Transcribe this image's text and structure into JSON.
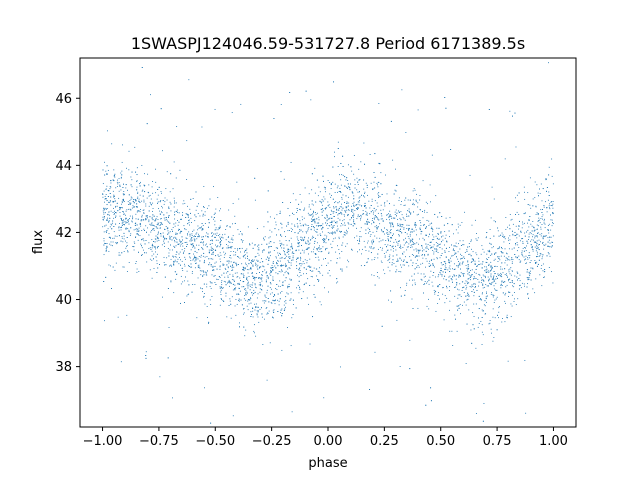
{
  "chart_data": {
    "type": "scatter",
    "title": "1SWASPJ124046.59-531727.8 Period 6171389.5s",
    "xlabel": "phase",
    "ylabel": "flux",
    "xlim": [
      -1.1,
      1.1
    ],
    "ylim": [
      36.2,
      47.2
    ],
    "xticks": [
      {
        "value": -1.0,
        "label": "−1.00"
      },
      {
        "value": -0.75,
        "label": "−0.75"
      },
      {
        "value": -0.5,
        "label": "−0.50"
      },
      {
        "value": -0.25,
        "label": "−0.25"
      },
      {
        "value": 0.0,
        "label": "0.00"
      },
      {
        "value": 0.25,
        "label": "0.25"
      },
      {
        "value": 0.5,
        "label": "0.50"
      },
      {
        "value": 0.75,
        "label": "0.75"
      },
      {
        "value": 1.0,
        "label": "1.00"
      }
    ],
    "yticks": [
      {
        "value": 38,
        "label": "38"
      },
      {
        "value": 40,
        "label": "40"
      },
      {
        "value": 42,
        "label": "42"
      },
      {
        "value": 44,
        "label": "44"
      },
      {
        "value": 46,
        "label": "46"
      }
    ],
    "grid": false,
    "legend": "none",
    "series": [
      {
        "color": "#1f77b4",
        "marker": "point",
        "phase_range": [
          -1.0,
          1.0
        ],
        "description_points": [
          {
            "x": -1.0,
            "y": 42.6
          },
          {
            "x": -0.9,
            "y": 42.6
          },
          {
            "x": -0.75,
            "y": 42.1
          },
          {
            "x": -0.6,
            "y": 41.7
          },
          {
            "x": -0.5,
            "y": 41.3
          },
          {
            "x": -0.4,
            "y": 40.7
          },
          {
            "x": -0.32,
            "y": 40.5
          },
          {
            "x": -0.25,
            "y": 40.8
          },
          {
            "x": -0.15,
            "y": 41.3
          },
          {
            "x": -0.05,
            "y": 41.9
          },
          {
            "x": 0.0,
            "y": 42.3
          },
          {
            "x": 0.1,
            "y": 42.6
          },
          {
            "x": 0.25,
            "y": 42.1
          },
          {
            "x": 0.4,
            "y": 41.7
          },
          {
            "x": 0.5,
            "y": 41.3
          },
          {
            "x": 0.6,
            "y": 40.7
          },
          {
            "x": 0.68,
            "y": 40.5
          },
          {
            "x": 0.75,
            "y": 40.8
          },
          {
            "x": 0.85,
            "y": 41.3
          },
          {
            "x": 0.95,
            "y": 41.9
          },
          {
            "x": 1.0,
            "y": 42.5
          }
        ]
      }
    ]
  }
}
